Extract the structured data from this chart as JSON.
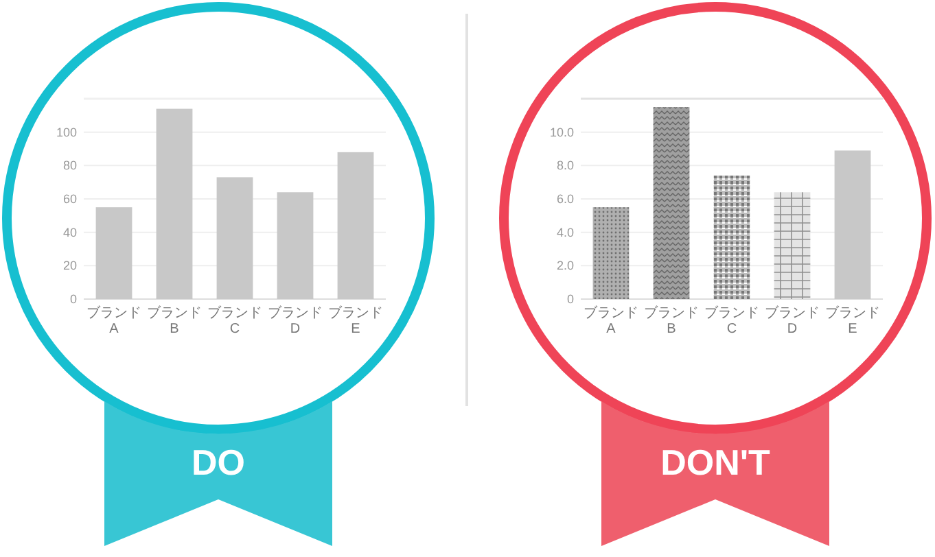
{
  "chart_data": [
    {
      "type": "bar",
      "title": "DO",
      "categories": [
        "ブランドA",
        "ブランドB",
        "ブランドC",
        "ブランドD",
        "ブランドE"
      ],
      "values": [
        55,
        114,
        73,
        64,
        88
      ],
      "color": "#c8c8c8",
      "ylim": [
        0,
        120
      ],
      "yticks": [
        0,
        20,
        40,
        60,
        80,
        100
      ],
      "grid": "y"
    },
    {
      "type": "bar",
      "title": "DON'T",
      "categories": [
        "ブランドA",
        "ブランドB",
        "ブランドC",
        "ブランドD",
        "ブランドE"
      ],
      "values": [
        5.5,
        11.5,
        7.4,
        6.4,
        8.9
      ],
      "colors": [
        "#b0b0b0",
        "#a0a0a0",
        "#bdbdbd",
        "#e4e4e4",
        "#c8c8c8"
      ],
      "ylim": [
        0,
        12
      ],
      "yticks": [
        0,
        {
          "value": 2,
          "label": "2.0"
        },
        {
          "value": 4,
          "label": "4.0"
        },
        {
          "value": 6,
          "label": "6.0"
        },
        {
          "value": 8,
          "label": "8.0"
        },
        {
          "value": 10,
          "label": "10.0"
        }
      ],
      "grid": "y"
    }
  ]
}
